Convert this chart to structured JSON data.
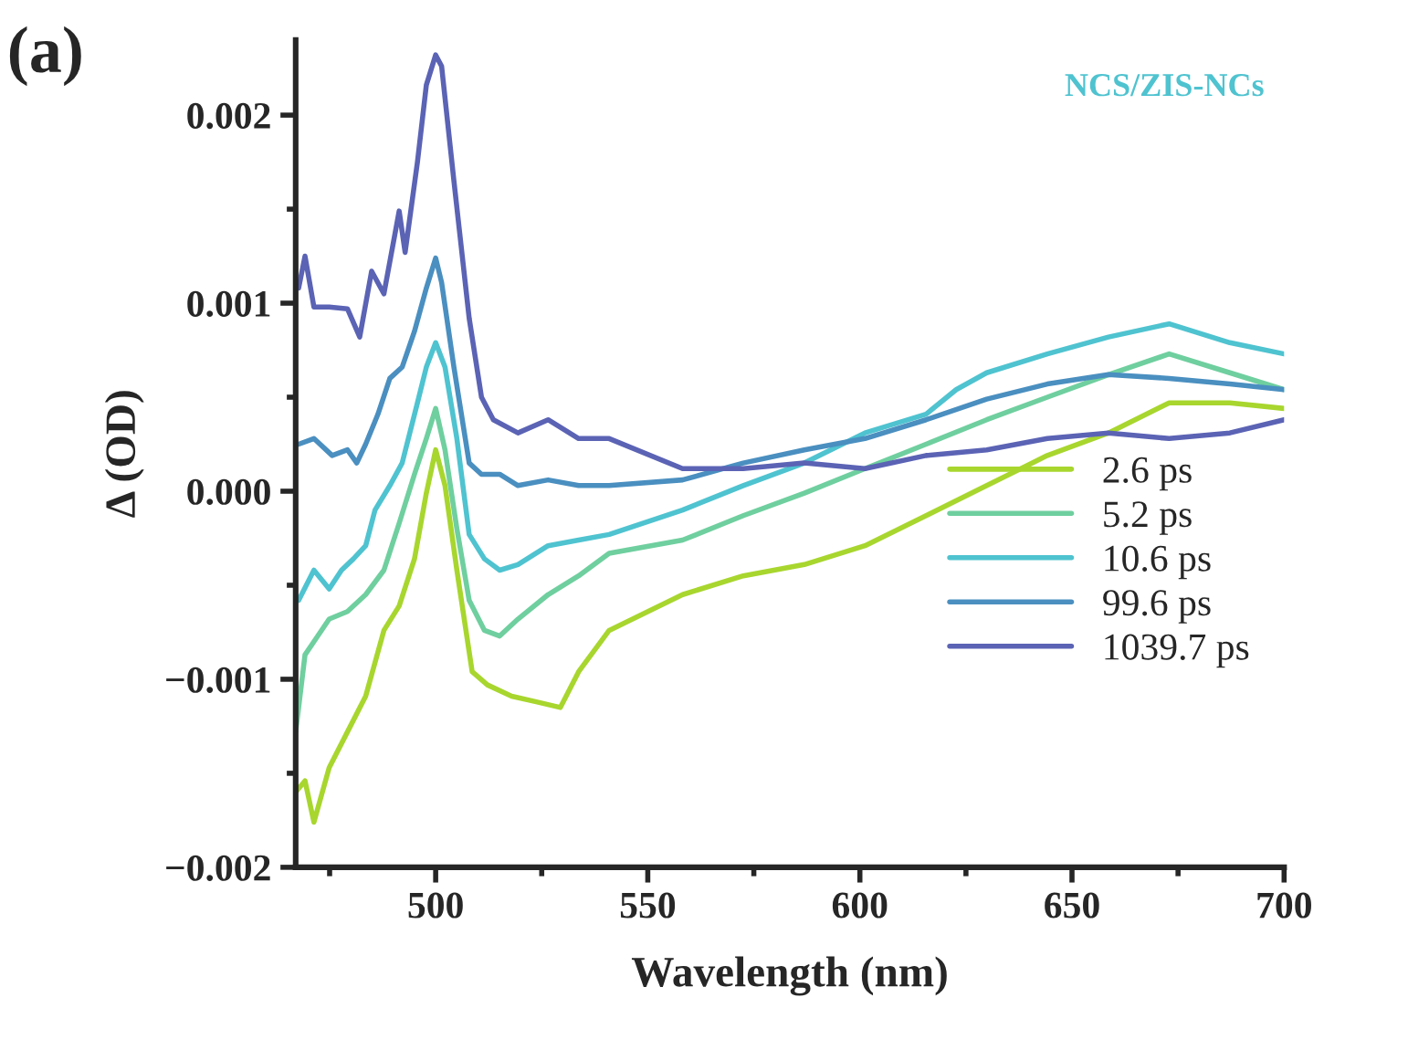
{
  "chart_data": {
    "type": "line",
    "xlabel": "Wavelength (nm)",
    "ylabel": "Δ (OD)",
    "annotations": [
      "(a)",
      "NCS/ZIS-NCs"
    ],
    "xlim": [
      467,
      700
    ],
    "xticks": [
      500,
      550,
      600,
      650,
      700
    ],
    "ylim": [
      -0.002,
      0.0024
    ],
    "yticks": [
      {
        "value": -0.002,
        "label": "−0.002"
      },
      {
        "value": -0.001,
        "label": "−0.001"
      },
      {
        "value": 0,
        "label": "0.000"
      },
      {
        "value": 0.001,
        "label": "0.001"
      },
      {
        "value": 0.002,
        "label": "0.002"
      }
    ],
    "grid": false,
    "legend": "bottom right",
    "marker": "none",
    "line_style": "solid",
    "series": [
      {
        "name": "2.6 ps",
        "color": "#a8d62e",
        "x": [
          467.0,
          469.2,
          471.3,
          474.9,
          479.2,
          483.5,
          487.8,
          491.4,
          495.0,
          497.8,
          500.0,
          502.2,
          505.0,
          508.6,
          512.2,
          517.9,
          523.7,
          529.4,
          533.7,
          540.9,
          558.2,
          572.5,
          586.9,
          601.2,
          615.6,
          629.9,
          644.2,
          658.6,
          672.9,
          687.2,
          700
        ],
        "values": [
          -0.0016,
          -0.00154,
          -0.00176,
          -0.00147,
          -0.00128,
          -0.00109,
          -0.00074,
          -0.00061,
          -0.00036,
          -1e-05,
          0.00022,
          3e-05,
          -0.00042,
          -0.00096,
          -0.00103,
          -0.00109,
          -0.00112,
          -0.00115,
          -0.00096,
          -0.00074,
          -0.00055,
          -0.00045,
          -0.00039,
          -0.00029,
          -0.00013,
          3e-05,
          0.00019,
          0.00031,
          0.00047,
          0.00047,
          0.00044
        ]
      },
      {
        "name": "5.2 ps",
        "color": "#6fcf9f",
        "x": [
          467.0,
          469.2,
          471.3,
          474.9,
          479.2,
          483.5,
          487.8,
          491.4,
          495.0,
          497.8,
          500.0,
          502.2,
          505.0,
          507.9,
          511.5,
          515.1,
          519.4,
          526.5,
          533.7,
          540.9,
          558.2,
          572.5,
          586.9,
          601.2,
          615.6,
          629.9,
          644.2,
          658.6,
          672.9,
          687.2,
          700
        ],
        "values": [
          -0.00128,
          -0.00087,
          -0.0008,
          -0.00068,
          -0.00064,
          -0.00055,
          -0.00042,
          -0.00017,
          9e-05,
          0.00028,
          0.00044,
          0.00022,
          -0.0002,
          -0.00058,
          -0.00074,
          -0.00077,
          -0.00068,
          -0.00055,
          -0.00045,
          -0.00033,
          -0.00026,
          -0.00013,
          -1e-05,
          0.00012,
          0.00025,
          0.00038,
          0.0005,
          0.00062,
          0.00073,
          0.00063,
          0.00054
        ]
      },
      {
        "name": "10.6 ps",
        "color": "#4fc3d0",
        "x": [
          467.7,
          471.3,
          474.9,
          477.8,
          480.6,
          483.5,
          485.7,
          489.2,
          492.1,
          495.7,
          497.8,
          500.0,
          502.2,
          505.0,
          507.9,
          511.5,
          515.1,
          519.4,
          526.5,
          533.7,
          540.9,
          558.2,
          572.5,
          586.9,
          601.2,
          615.6,
          622.7,
          629.9,
          644.2,
          658.6,
          672.9,
          687.2,
          700
        ],
        "values": [
          -0.00058,
          -0.00042,
          -0.00052,
          -0.00042,
          -0.00036,
          -0.00029,
          -0.0001,
          3e-05,
          0.00015,
          0.00047,
          0.00066,
          0.00079,
          0.00066,
          0.00028,
          -0.00023,
          -0.00036,
          -0.00042,
          -0.00039,
          -0.00029,
          -0.00026,
          -0.00023,
          -0.0001,
          3e-05,
          0.00015,
          0.00031,
          0.00041,
          0.00054,
          0.00063,
          0.00073,
          0.00082,
          0.00089,
          0.00079,
          0.00073
        ]
      },
      {
        "name": "99.6 ps",
        "color": "#4a8fc0",
        "x": [
          467.7,
          471.3,
          475.6,
          479.2,
          481.4,
          483.5,
          486.4,
          489.2,
          492.1,
          495.0,
          497.8,
          500.0,
          501.4,
          504.3,
          507.9,
          510.8,
          515.1,
          519.4,
          526.5,
          533.7,
          540.9,
          558.2,
          572.5,
          586.9,
          601.2,
          615.6,
          629.9,
          644.2,
          658.6,
          672.9,
          687.2,
          700
        ],
        "values": [
          0.00025,
          0.00028,
          0.00019,
          0.00022,
          0.00015,
          0.00025,
          0.00041,
          0.0006,
          0.00066,
          0.00085,
          0.00108,
          0.00124,
          0.00111,
          0.00066,
          0.00015,
          9e-05,
          9e-05,
          3e-05,
          6e-05,
          3e-05,
          3e-05,
          6e-05,
          0.00015,
          0.00022,
          0.00028,
          0.00038,
          0.00049,
          0.00057,
          0.00062,
          0.0006,
          0.00057,
          0.00054
        ]
      },
      {
        "name": "1039.7 ps",
        "color": "#5b63b5",
        "x": [
          467.7,
          469.2,
          471.3,
          474.9,
          479.2,
          482.1,
          484.9,
          487.8,
          491.4,
          492.8,
          495.7,
          497.8,
          500.0,
          501.4,
          504.3,
          507.9,
          510.8,
          513.6,
          519.4,
          526.5,
          533.7,
          540.9,
          558.2,
          572.5,
          586.9,
          601.2,
          615.6,
          629.9,
          644.2,
          658.6,
          672.9,
          687.2,
          700
        ],
        "values": [
          0.00108,
          0.00125,
          0.00098,
          0.00098,
          0.00097,
          0.00082,
          0.00117,
          0.00105,
          0.00149,
          0.00127,
          0.00175,
          0.00216,
          0.00232,
          0.00226,
          0.00165,
          0.00092,
          0.0005,
          0.00038,
          0.00031,
          0.00038,
          0.00028,
          0.00028,
          0.00012,
          0.00012,
          0.00015,
          0.00012,
          0.00019,
          0.00022,
          0.00028,
          0.00031,
          0.00028,
          0.00031,
          0.00038
        ]
      }
    ]
  }
}
